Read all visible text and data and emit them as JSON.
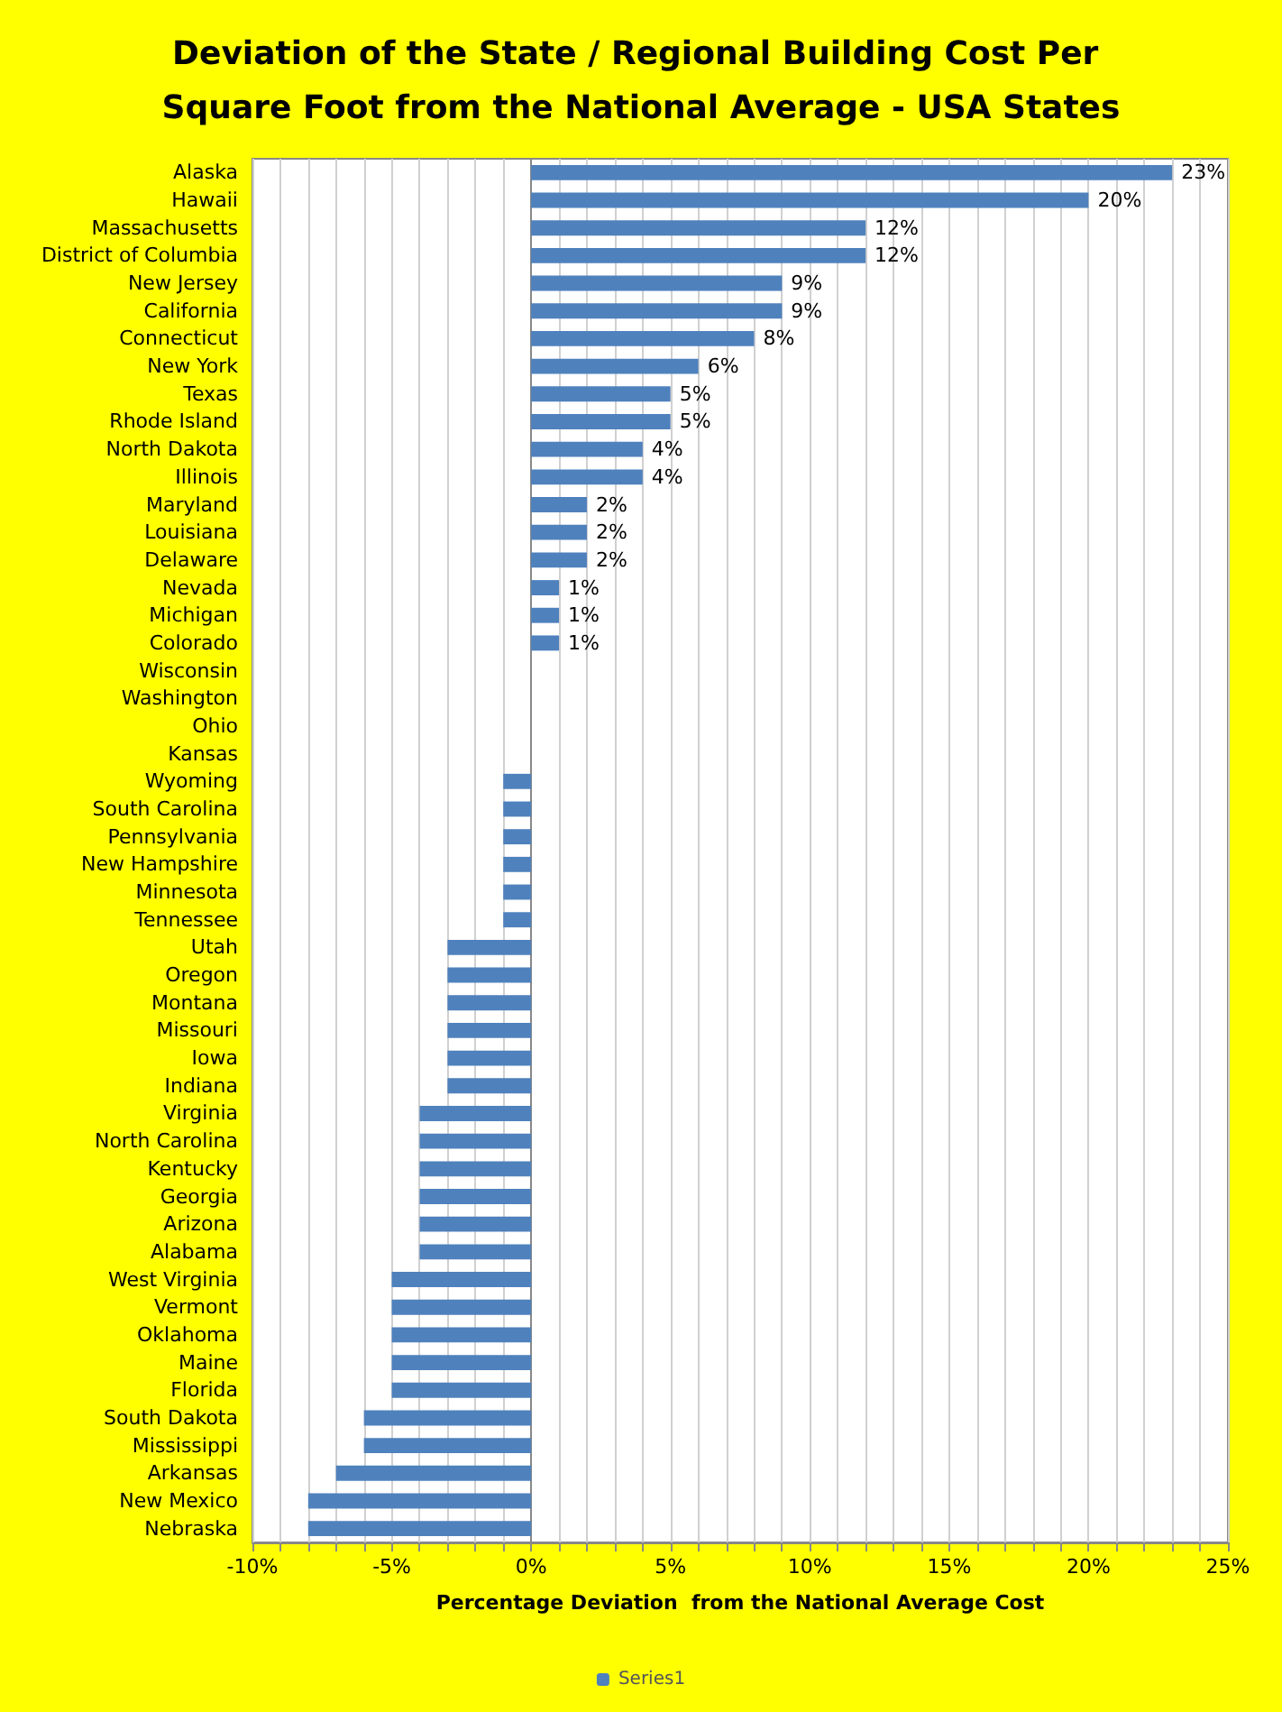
{
  "chart_data": {
    "type": "bar",
    "orientation": "horizontal",
    "title": "Deviation of the State / Regional Building Cost Per Square Foot from the National Average - USA States",
    "xlabel": "Percentage Deviation  from the National Average Cost",
    "categories": [
      "Alaska",
      "Hawaii",
      "Massachusetts",
      "District of Columbia",
      "New Jersey",
      "California",
      "Connecticut",
      "New York",
      "Texas",
      "Rhode Island",
      "North Dakota",
      "Illinois",
      "Maryland",
      "Louisiana",
      "Delaware",
      "Nevada",
      "Michigan",
      "Colorado",
      "Wisconsin",
      "Washington",
      "Ohio",
      "Kansas",
      "Wyoming",
      "South Carolina",
      "Pennsylvania",
      "New Hampshire",
      "Minnesota",
      "Tennessee",
      "Utah",
      "Oregon",
      "Montana",
      "Missouri",
      "Iowa",
      "Indiana",
      "Virginia",
      "North Carolina",
      "Kentucky",
      "Georgia",
      "Arizona",
      "Alabama",
      "West Virginia",
      "Vermont",
      "Oklahoma",
      "Maine",
      "Florida",
      "South Dakota",
      "Mississippi",
      "Arkansas",
      "New Mexico",
      "Nebraska"
    ],
    "series": [
      {
        "name": "Series1",
        "color": "#4f81bd",
        "values": [
          23,
          20,
          12,
          12,
          9,
          9,
          8,
          6,
          5,
          5,
          4,
          4,
          2,
          2,
          2,
          1,
          1,
          1,
          0,
          0,
          0,
          0,
          -1,
          -1,
          -1,
          -1,
          -1,
          -1,
          -3,
          -3,
          -3,
          -3,
          -3,
          -3,
          -4,
          -4,
          -4,
          -4,
          -4,
          -4,
          -5,
          -5,
          -5,
          -5,
          -5,
          -6,
          -6,
          -7,
          -8,
          -8
        ],
        "value_labels": [
          "23%",
          "20%",
          "12%",
          "12%",
          "9%",
          "9%",
          "8%",
          "6%",
          "5%",
          "5%",
          "4%",
          "4%",
          "2%",
          "2%",
          "2%",
          "1%",
          "1%",
          "1%",
          null,
          null,
          null,
          null,
          null,
          null,
          null,
          null,
          null,
          null,
          null,
          null,
          null,
          null,
          null,
          null,
          null,
          null,
          null,
          null,
          null,
          null,
          null,
          null,
          null,
          null,
          null,
          null,
          null,
          null,
          null,
          null
        ]
      }
    ],
    "xlim": [
      -10,
      25
    ],
    "xticks": [
      {
        "value": -10,
        "label": "-10%"
      },
      {
        "value": -9,
        "label": null
      },
      {
        "value": -8,
        "label": null
      },
      {
        "value": -7,
        "label": null
      },
      {
        "value": -6,
        "label": null
      },
      {
        "value": -5,
        "label": "-5%"
      },
      {
        "value": -4,
        "label": null
      },
      {
        "value": -3,
        "label": null
      },
      {
        "value": -2,
        "label": null
      },
      {
        "value": -1,
        "label": null
      },
      {
        "value": 0,
        "label": "0%"
      },
      {
        "value": 1,
        "label": null
      },
      {
        "value": 2,
        "label": null
      },
      {
        "value": 3,
        "label": null
      },
      {
        "value": 4,
        "label": null
      },
      {
        "value": 5,
        "label": "5%"
      },
      {
        "value": 6,
        "label": null
      },
      {
        "value": 7,
        "label": null
      },
      {
        "value": 8,
        "label": null
      },
      {
        "value": 9,
        "label": null
      },
      {
        "value": 10,
        "label": "10%"
      },
      {
        "value": 11,
        "label": null
      },
      {
        "value": 12,
        "label": null
      },
      {
        "value": 13,
        "label": null
      },
      {
        "value": 14,
        "label": null
      },
      {
        "value": 15,
        "label": "15%"
      },
      {
        "value": 16,
        "label": null
      },
      {
        "value": 17,
        "label": null
      },
      {
        "value": 18,
        "label": null
      },
      {
        "value": 19,
        "label": null
      },
      {
        "value": 20,
        "label": "20%"
      },
      {
        "value": 21,
        "label": null
      },
      {
        "value": 22,
        "label": null
      },
      {
        "value": 23,
        "label": null
      },
      {
        "value": 24,
        "label": null
      },
      {
        "value": 25,
        "label": "25%"
      }
    ],
    "grid": "x",
    "legend": "bottom"
  }
}
